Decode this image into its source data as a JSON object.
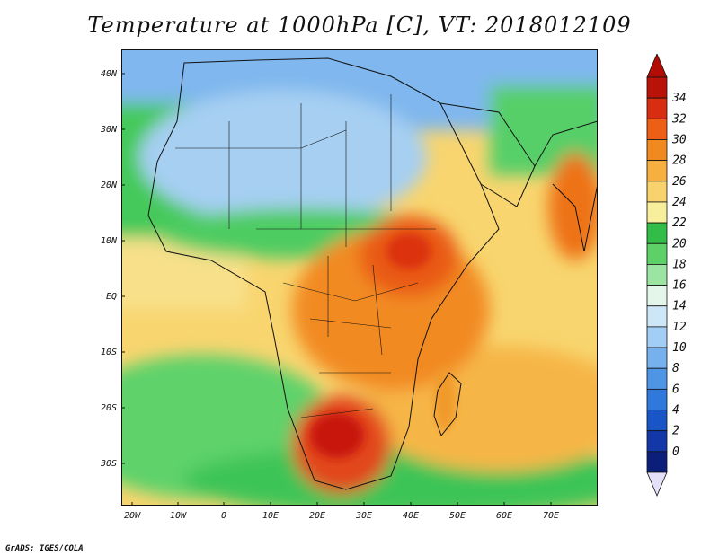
{
  "title": "Temperature at 1000hPa [C], VT: 2018012109",
  "credit": "GrADS: IGES/COLA",
  "lat_labels": [
    "40N",
    "30N",
    "20N",
    "10N",
    "EQ",
    "10S",
    "20S",
    "30S"
  ],
  "lon_labels": [
    "20W",
    "10W",
    "0",
    "10E",
    "20E",
    "30E",
    "40E",
    "50E",
    "60E",
    "70E"
  ],
  "map_extent": {
    "lon": [
      -22,
      80
    ],
    "lat": [
      -37,
      45
    ]
  },
  "colorbar": {
    "levels": [
      0,
      2,
      4,
      6,
      8,
      10,
      12,
      14,
      16,
      18,
      20,
      22,
      24,
      26,
      28,
      30,
      32,
      34
    ],
    "colors": [
      "#0b1f7a",
      "#1337a8",
      "#1a55c8",
      "#2f78dc",
      "#4f95e6",
      "#76b1ee",
      "#a2cdf4",
      "#cde6f8",
      "#e4f6ea",
      "#9be4a2",
      "#5dd068",
      "#31bd47",
      "#f7ef9c",
      "#f8d26c",
      "#f7b03f",
      "#f18a1e",
      "#ec5f14",
      "#d82d10",
      "#b91208"
    ],
    "below_color": "#e3e0f7",
    "above_color": "#b20c04"
  }
}
